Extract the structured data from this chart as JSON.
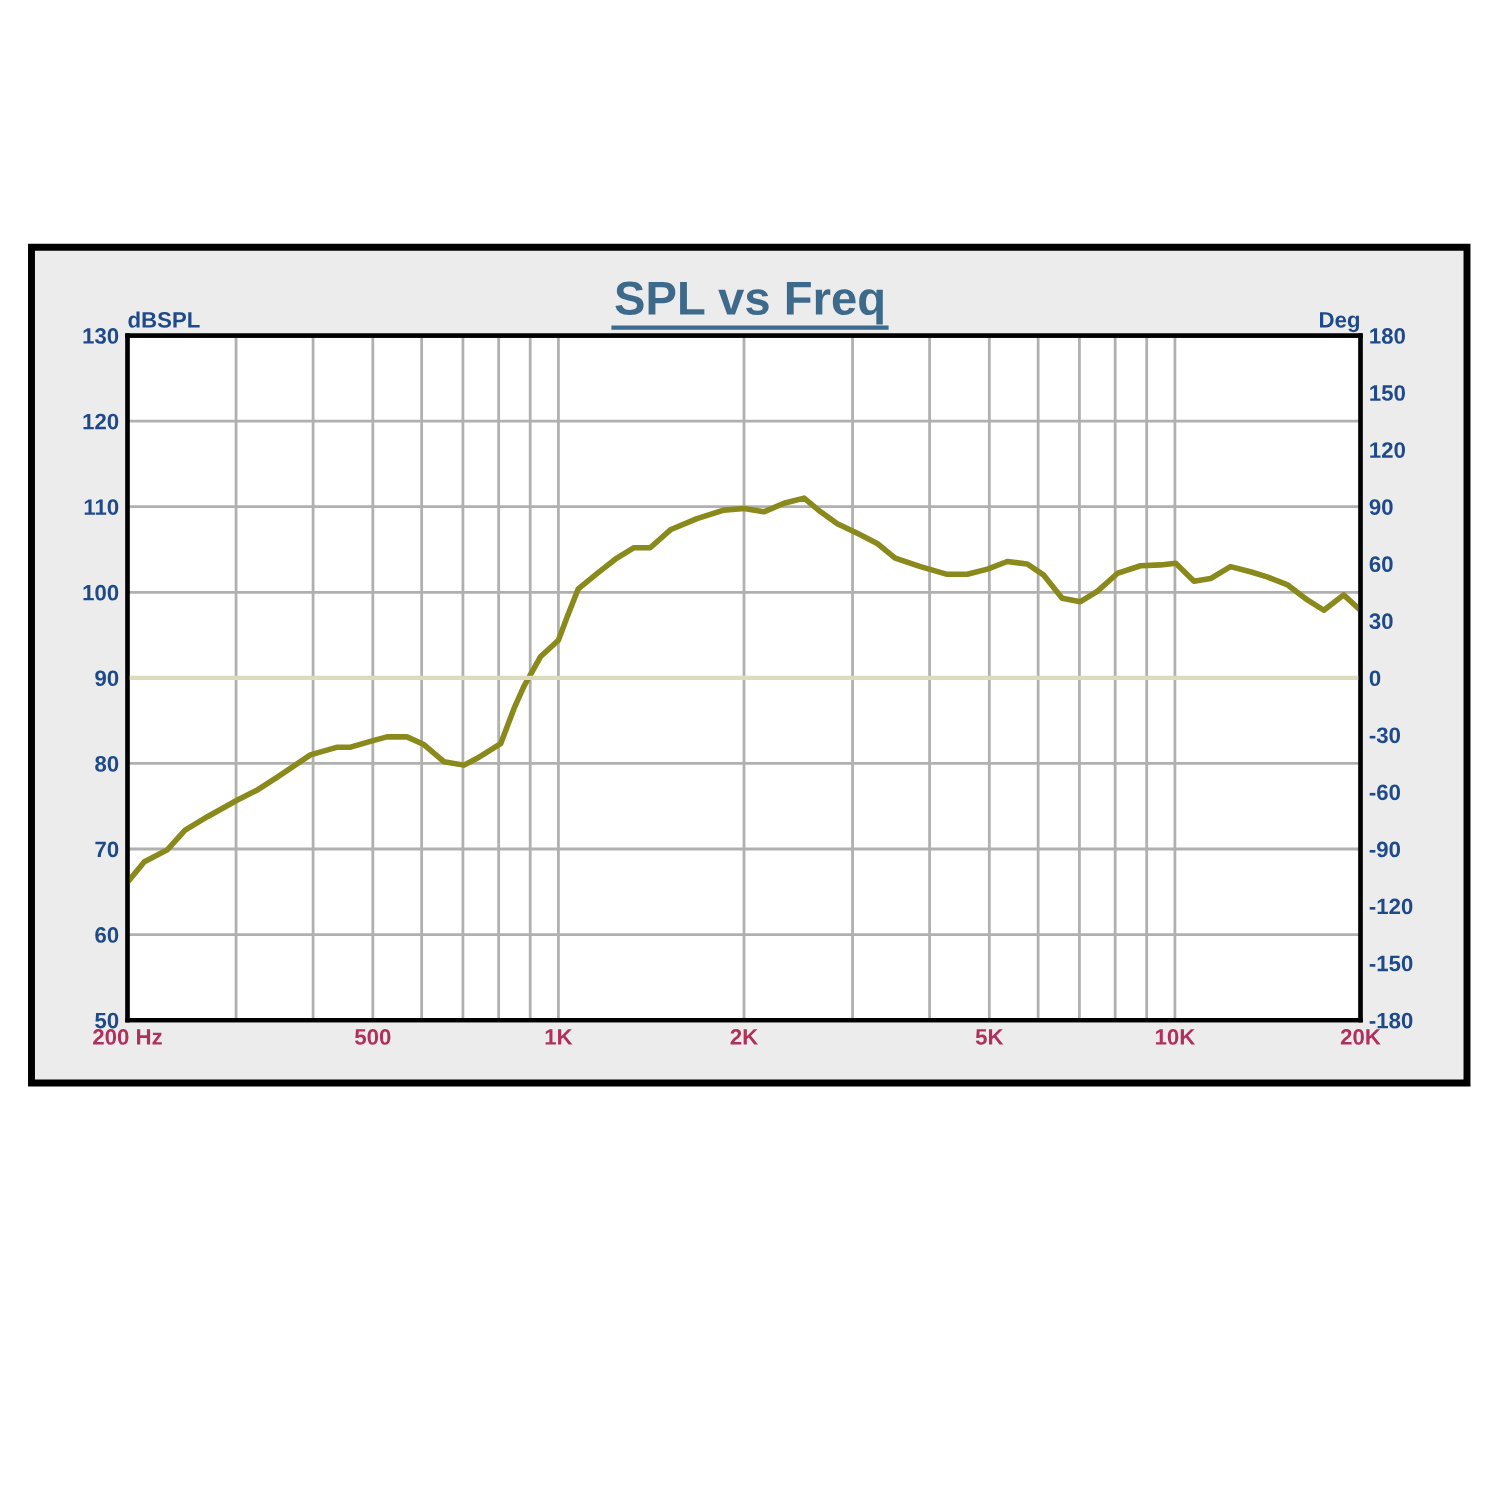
{
  "chart_data": {
    "type": "line",
    "title": "SPL vs Freq",
    "ylabel": "dBSPL",
    "y2label": "Deg",
    "log": "x",
    "grid": true,
    "marker": "none",
    "line_style": "solid",
    "xlim": [
      200,
      20000
    ],
    "ylim": [
      50,
      130
    ],
    "y2lim": [
      -180,
      180
    ],
    "xticks": [
      {
        "value": 200,
        "label": "200 Hz"
      },
      {
        "value": 300,
        "label": null
      },
      {
        "value": 400,
        "label": null
      },
      {
        "value": 500,
        "label": "500"
      },
      {
        "value": 600,
        "label": null
      },
      {
        "value": 700,
        "label": null
      },
      {
        "value": 800,
        "label": null
      },
      {
        "value": 900,
        "label": null
      },
      {
        "value": 1000,
        "label": "1K"
      },
      {
        "value": 2000,
        "label": "2K"
      },
      {
        "value": 3000,
        "label": null
      },
      {
        "value": 4000,
        "label": null
      },
      {
        "value": 5000,
        "label": "5K"
      },
      {
        "value": 6000,
        "label": null
      },
      {
        "value": 7000,
        "label": null
      },
      {
        "value": 8000,
        "label": null
      },
      {
        "value": 9000,
        "label": null
      },
      {
        "value": 10000,
        "label": "10K"
      },
      {
        "value": 20000,
        "label": "20K"
      }
    ],
    "yticks": [
      50,
      60,
      70,
      80,
      90,
      100,
      110,
      120,
      130
    ],
    "y2ticks": [
      -180,
      -150,
      -120,
      -90,
      -60,
      -30,
      0,
      30,
      60,
      90,
      120,
      150,
      180
    ],
    "ref_lines": [
      {
        "axis": "y2",
        "value": 0,
        "color": "#dcdcbc"
      }
    ],
    "series": [
      {
        "color": "#8a8a1c",
        "x": [
          200,
          213,
          232,
          248,
          270,
          301,
          325,
          350,
          396,
          438,
          460,
          502,
          527,
          568,
          605,
          652,
          703,
          738,
          806,
          847,
          879,
          936,
          1000,
          1033,
          1077,
          1156,
          1244,
          1324,
          1409,
          1519,
          1678,
          1854,
          2000,
          2154,
          2322,
          2503,
          2663,
          2834,
          3054,
          3290,
          3518,
          3866,
          4272,
          4604,
          4965,
          5346,
          5762,
          6127,
          6563,
          7025,
          7482,
          8064,
          8795,
          9477,
          10029,
          10740,
          11420,
          12307,
          13260,
          14110,
          15204,
          16400,
          17440,
          18780,
          20000
        ],
        "values": [
          66.1,
          68.5,
          69.9,
          72.2,
          73.8,
          75.7,
          76.9,
          78.4,
          81.0,
          81.9,
          81.9,
          82.7,
          83.1,
          83.1,
          82.2,
          80.2,
          79.8,
          80.6,
          82.3,
          86.4,
          89.0,
          92.5,
          94.4,
          97.1,
          100.4,
          102.2,
          104.0,
          105.2,
          105.2,
          107.3,
          108.6,
          109.6,
          109.8,
          109.4,
          110.4,
          111.0,
          109.4,
          108.0,
          106.9,
          105.7,
          104.0,
          103.0,
          102.1,
          102.1,
          102.7,
          103.6,
          103.3,
          102.0,
          99.3,
          98.9,
          100.1,
          102.2,
          103.1,
          103.2,
          103.4,
          101.3,
          101.6,
          103.0,
          102.4,
          101.8,
          100.9,
          99.1,
          97.9,
          99.7,
          97.9
        ]
      }
    ]
  }
}
